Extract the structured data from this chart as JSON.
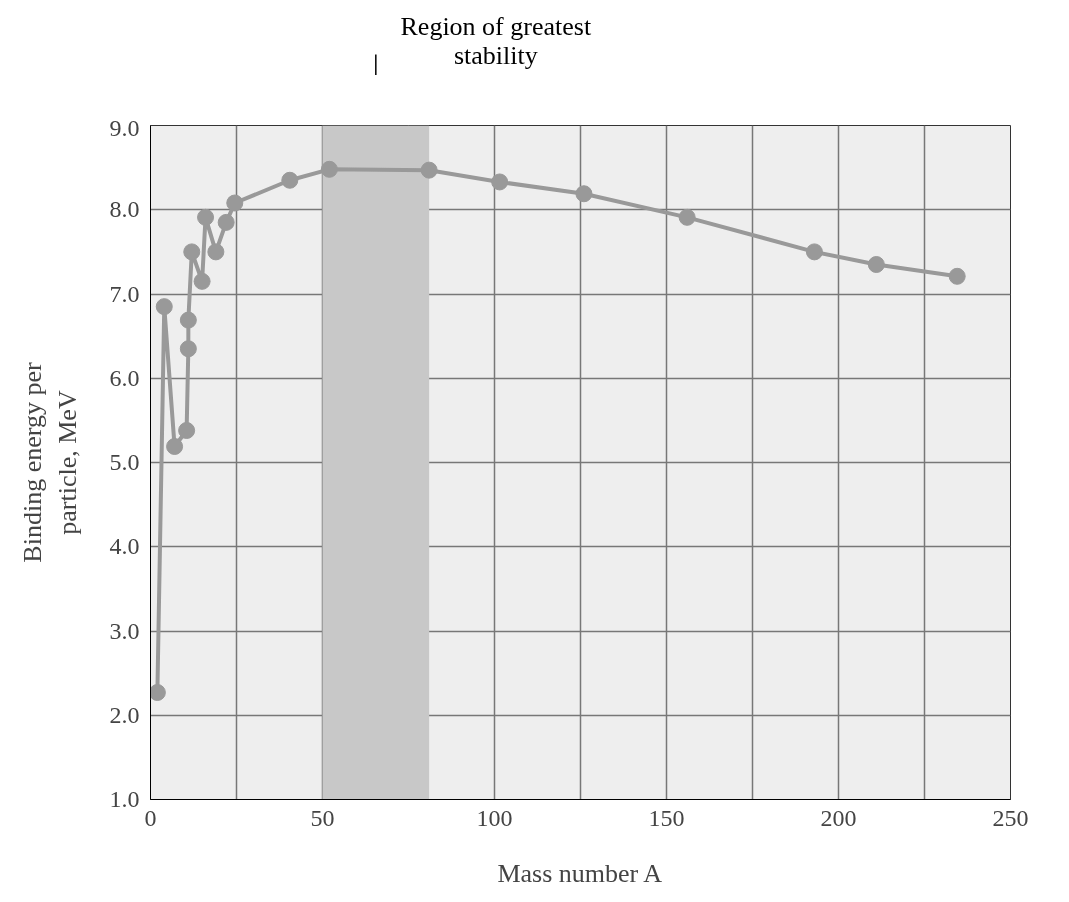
{
  "chart_data": {
    "type": "line",
    "xlabel": "Mass number A",
    "ylabel": "Binding energy per\nparticle, MeV",
    "x": [
      2,
      4,
      7,
      10.5,
      11,
      11,
      12,
      15,
      16,
      19,
      22,
      24.5,
      40.5,
      52,
      81,
      101.5,
      126,
      156,
      193,
      211,
      234.5
    ],
    "series": [
      {
        "color": "#999999",
        "values": [
          2.27,
          6.85,
          5.19,
          5.38,
          6.35,
          6.69,
          7.5,
          7.15,
          7.91,
          7.5,
          7.85,
          8.08,
          8.35,
          8.48,
          8.47,
          8.33,
          8.19,
          7.91,
          7.5,
          7.35,
          7.21
        ]
      }
    ],
    "marker": "circle",
    "line_style": "solid",
    "grid": true,
    "xlim": [
      0,
      250
    ],
    "ylim": [
      1,
      9
    ],
    "xticks": [
      0,
      {
        "value": 25,
        "label": null
      },
      50,
      {
        "value": 75,
        "label": null
      },
      100,
      {
        "value": 125,
        "label": null
      },
      150,
      {
        "value": 175,
        "label": null
      },
      200,
      {
        "value": 225,
        "label": null
      },
      250
    ],
    "yticks": [
      {
        "value": 1,
        "label": "1.0"
      },
      {
        "value": 2,
        "label": "2.0"
      },
      {
        "value": 3,
        "label": "3.0"
      },
      {
        "value": 4,
        "label": "4.0"
      },
      {
        "value": 5,
        "label": "5.0"
      },
      {
        "value": 6,
        "label": "6.0"
      },
      {
        "value": 7,
        "label": "7.0"
      },
      {
        "value": 8,
        "label": "8.0"
      },
      {
        "value": 9,
        "label": "9.0"
      }
    ],
    "bands": [
      {
        "axis": "x",
        "from": 50,
        "to": 81,
        "label": "Region of greatest\nstability",
        "color": "#c8c8c8"
      }
    ]
  }
}
